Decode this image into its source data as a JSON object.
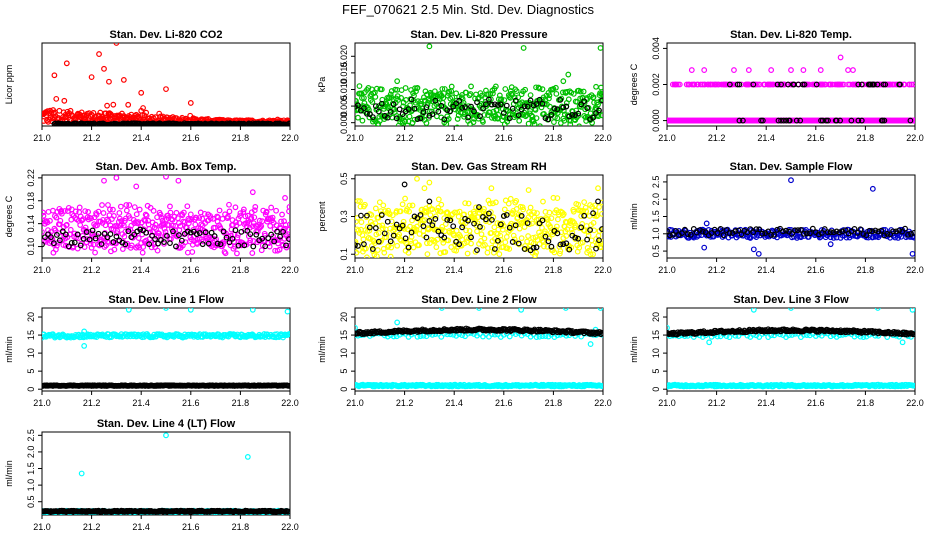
{
  "title": "FEF_070621  2.5 Min. Std. Dev. Diagnostics",
  "x_ticks": [
    "21.0",
    "21.2",
    "21.4",
    "21.6",
    "21.8",
    "22.0"
  ],
  "colors": {
    "overlay": "#000000"
  },
  "chart_data": [
    {
      "type": "scatter",
      "title": "Stan. Dev. Li-820 CO2",
      "ylabel": "Licor ppm",
      "xlim": [
        21.0,
        22.0
      ],
      "ylim": [
        0.0,
        9.0
      ],
      "yticks": [],
      "color": "#ff0000",
      "series": [
        {
          "name": "primary",
          "color": "#ff0000",
          "noise": "heavy-low-spikes",
          "base": 0.8,
          "spread": 1.2,
          "spikes": [
            [
              21.05,
              5.5
            ],
            [
              21.1,
              6.8
            ],
            [
              21.2,
              5.3
            ],
            [
              21.23,
              7.8
            ],
            [
              21.25,
              6.2
            ],
            [
              21.27,
              4.8
            ],
            [
              21.3,
              9.0
            ],
            [
              21.33,
              5.0
            ],
            [
              21.4,
              3.6
            ],
            [
              21.5,
              4.0
            ],
            [
              21.6,
              2.5
            ],
            [
              21.95,
              0.7
            ]
          ]
        },
        {
          "name": "overlay",
          "color": "#000000",
          "noise": "flat",
          "base": 0.2,
          "spread": 0.1,
          "xmin": 21.05
        }
      ]
    },
    {
      "type": "scatter",
      "title": "Stan. Dev. Li-820 Pressure",
      "ylabel": "kPa",
      "xlim": [
        21.0,
        22.0
      ],
      "ylim": [
        -0.001,
        0.024
      ],
      "yticks": [
        "0.000",
        "0.005",
        "0.010",
        "0.015",
        "0.020"
      ],
      "ytick_values": [
        0.0,
        0.005,
        0.01,
        0.015,
        0.02
      ],
      "color": "#00c000",
      "series": [
        {
          "name": "primary",
          "color": "#00c000",
          "noise": "band",
          "base": 0.005,
          "spread": 0.005,
          "spikes": [
            [
              21.17,
              0.0125
            ],
            [
              21.3,
              0.023
            ],
            [
              21.68,
              0.0225
            ],
            [
              21.84,
              0.0125
            ],
            [
              21.86,
              0.0145
            ],
            [
              21.99,
              0.0225
            ]
          ]
        },
        {
          "name": "overlay",
          "color": "#000000",
          "noise": "sparse",
          "base": 0.004,
          "spread": 0.003,
          "xmin": 21.0
        }
      ]
    },
    {
      "type": "scatter",
      "title": "Stan. Dev. Li-820 Temp.",
      "ylabel": "degrees C",
      "xlim": [
        21.0,
        22.0
      ],
      "ylim": [
        -0.0003,
        0.0043
      ],
      "yticks": [
        "0.000",
        "0.002",
        "0.004"
      ],
      "ytick_values": [
        0.0,
        0.002,
        0.004
      ],
      "color": "#ff00ff",
      "series": [
        {
          "name": "primary-low",
          "color": "#ff00ff",
          "noise": "levels",
          "levels": [
            0.0
          ],
          "density": 1.0,
          "xmin": 21.0
        },
        {
          "name": "primary-mid",
          "color": "#ff00ff",
          "noise": "levels",
          "levels": [
            0.002
          ],
          "density": 0.6,
          "xmin": 21.02,
          "spikes": [
            [
              21.1,
              0.0028
            ],
            [
              21.15,
              0.0028
            ],
            [
              21.27,
              0.0028
            ],
            [
              21.33,
              0.0028
            ],
            [
              21.42,
              0.0028
            ],
            [
              21.5,
              0.0028
            ],
            [
              21.55,
              0.0028
            ],
            [
              21.62,
              0.0028
            ],
            [
              21.7,
              0.0035
            ],
            [
              21.73,
              0.0028
            ],
            [
              21.75,
              0.0028
            ]
          ]
        },
        {
          "name": "overlay",
          "color": "#000000",
          "noise": "levels",
          "levels": [
            0.0,
            0.002
          ],
          "density": 0.12,
          "xmin": 21.25
        }
      ]
    },
    {
      "type": "scatter",
      "title": "Stan. Dev. Amb. Box Temp.",
      "ylabel": "degrees C",
      "xlim": [
        21.0,
        22.0
      ],
      "ylim": [
        0.08,
        0.225
      ],
      "yticks": [
        "0.10",
        "0.14",
        "0.18",
        "0.22"
      ],
      "ytick_values": [
        0.1,
        0.14,
        0.18,
        0.22
      ],
      "color": "#ff00ff",
      "series": [
        {
          "name": "primary",
          "color": "#ff00ff",
          "noise": "band",
          "base": 0.13,
          "spread": 0.035,
          "spikes": [
            [
              21.25,
              0.215
            ],
            [
              21.3,
              0.22
            ],
            [
              21.38,
              0.205
            ],
            [
              21.5,
              0.222
            ],
            [
              21.55,
              0.215
            ],
            [
              21.85,
              0.195
            ],
            [
              21.98,
              0.185
            ]
          ]
        },
        {
          "name": "overlay",
          "color": "#000000",
          "noise": "sparse",
          "base": 0.115,
          "spread": 0.015,
          "xmin": 21.0
        }
      ]
    },
    {
      "type": "scatter",
      "title": "Stan. Dev. Gas Stream RH",
      "ylabel": "percent",
      "xlim": [
        21.0,
        22.0
      ],
      "ylim": [
        0.08,
        0.52
      ],
      "yticks": [
        "0.1",
        "0.3",
        "0.5"
      ],
      "ytick_values": [
        0.1,
        0.3,
        0.5
      ],
      "color": "#ffff00",
      "series": [
        {
          "name": "primary",
          "color": "#ffff00",
          "noise": "band",
          "base": 0.24,
          "spread": 0.13,
          "spikes": [
            [
              21.25,
              0.5
            ],
            [
              21.28,
              0.45
            ],
            [
              21.3,
              0.48
            ],
            [
              21.55,
              0.45
            ],
            [
              21.7,
              0.44
            ],
            [
              21.98,
              0.45
            ]
          ]
        },
        {
          "name": "overlay",
          "color": "#000000",
          "noise": "sparse",
          "base": 0.22,
          "spread": 0.1,
          "xmin": 21.0,
          "spikes": [
            [
              21.2,
              0.47
            ],
            [
              21.3,
              0.38
            ],
            [
              21.5,
              0.35
            ],
            [
              21.98,
              0.38
            ]
          ]
        }
      ]
    },
    {
      "type": "scatter",
      "title": "Stan. Dev. Sample Flow",
      "ylabel": "ml/min",
      "xlim": [
        21.0,
        22.0
      ],
      "ylim": [
        0.3,
        2.7
      ],
      "yticks": [
        "0.5",
        "1.0",
        "1.5",
        "2.0",
        "2.5"
      ],
      "ytick_values": [
        0.5,
        1.0,
        1.5,
        2.0,
        2.5
      ],
      "color": "#0000cc",
      "series": [
        {
          "name": "primary",
          "color": "#0000cc",
          "noise": "flat",
          "base": 1.0,
          "spread": 0.12,
          "spikes": [
            [
              21.15,
              0.6
            ],
            [
              21.16,
              1.3
            ],
            [
              21.35,
              0.55
            ],
            [
              21.37,
              0.42
            ],
            [
              21.5,
              2.55
            ],
            [
              21.66,
              0.7
            ],
            [
              21.83,
              2.3
            ],
            [
              21.99,
              0.42
            ]
          ]
        },
        {
          "name": "overlay",
          "color": "#000000",
          "noise": "sparse",
          "base": 1.05,
          "spread": 0.1,
          "xmin": 21.0
        }
      ]
    },
    {
      "type": "scatter",
      "title": "Stan. Dev. Line 1 Flow",
      "ylabel": "ml/min",
      "xlim": [
        21.0,
        22.0
      ],
      "ylim": [
        -0.5,
        22.5
      ],
      "yticks": [
        "0",
        "5",
        "10",
        "15",
        "20"
      ],
      "ytick_values": [
        0,
        5,
        10,
        15,
        20
      ],
      "color": "#00ffff",
      "series": [
        {
          "name": "primary",
          "color": "#00ffff",
          "noise": "flat",
          "base": 14.8,
          "spread": 0.5,
          "spikes": [
            [
              21.17,
              16.0
            ],
            [
              21.17,
              12.0
            ],
            [
              21.35,
              22.0
            ],
            [
              21.5,
              22.5
            ],
            [
              21.6,
              22.0
            ],
            [
              21.85,
              22.0
            ],
            [
              21.99,
              21.5
            ]
          ]
        },
        {
          "name": "overlay",
          "color": "#000000",
          "noise": "flat",
          "base": 1.0,
          "spread": 0.1,
          "xmin": 21.0
        }
      ]
    },
    {
      "type": "scatter",
      "title": "Stan. Dev. Line 2 Flow",
      "ylabel": "ml/min",
      "xlim": [
        21.0,
        22.0
      ],
      "ylim": [
        -0.5,
        22.5
      ],
      "yticks": [
        "0",
        "5",
        "10",
        "15",
        "20"
      ],
      "ytick_values": [
        0,
        5,
        10,
        15,
        20
      ],
      "color": "#00ffff",
      "series": [
        {
          "name": "primary-low",
          "color": "#00ffff",
          "noise": "flat",
          "base": 1.0,
          "spread": 0.25
        },
        {
          "name": "primary-high",
          "color": "#00ffff",
          "noise": "sparse",
          "base": 15.0,
          "spread": 0.6,
          "xmin": 21.0,
          "spikes": [
            [
              21.0,
              17.0
            ],
            [
              21.17,
              18.5
            ],
            [
              21.35,
              22.5
            ],
            [
              21.5,
              22.5
            ],
            [
              21.67,
              22.0
            ],
            [
              21.85,
              22.5
            ],
            [
              21.99,
              22.5
            ],
            [
              21.97,
              16.5
            ],
            [
              21.95,
              12.5
            ]
          ]
        },
        {
          "name": "overlay",
          "color": "#000000",
          "noise": "flat",
          "base": 15.5,
          "spread": 0.35,
          "xmin": 21.0,
          "curve": 1.0
        }
      ]
    },
    {
      "type": "scatter",
      "title": "Stan. Dev. Line 3 Flow",
      "ylabel": "ml/min",
      "xlim": [
        21.0,
        22.0
      ],
      "ylim": [
        -0.5,
        22.5
      ],
      "yticks": [
        "0",
        "5",
        "10",
        "15",
        "20"
      ],
      "ytick_values": [
        0,
        5,
        10,
        15,
        20
      ],
      "color": "#00ffff",
      "series": [
        {
          "name": "primary-low",
          "color": "#00ffff",
          "noise": "flat",
          "base": 1.0,
          "spread": 0.25
        },
        {
          "name": "primary-high",
          "color": "#00ffff",
          "noise": "sparse",
          "base": 15.0,
          "spread": 0.6,
          "xmin": 21.0,
          "spikes": [
            [
              21.0,
              17.0
            ],
            [
              21.17,
              13.0
            ],
            [
              21.35,
              22.0
            ],
            [
              21.5,
              22.5
            ],
            [
              21.85,
              22.5
            ],
            [
              21.99,
              22.0
            ],
            [
              21.95,
              13.0
            ]
          ]
        },
        {
          "name": "overlay",
          "color": "#000000",
          "noise": "flat",
          "base": 15.3,
          "spread": 0.35,
          "xmin": 21.0,
          "curve": 1.0
        }
      ]
    },
    {
      "type": "scatter",
      "title": "Stan. Dev. Line 4 (LT) Flow",
      "ylabel": "ml/min",
      "xlim": [
        21.0,
        22.0
      ],
      "ylim": [
        0.1,
        2.6
      ],
      "yticks": [
        "0.5",
        "1.0",
        "1.5",
        "2.0",
        "2.5"
      ],
      "ytick_values": [
        0.5,
        1.0,
        1.5,
        2.0,
        2.5
      ],
      "color": "#00ffff",
      "series": [
        {
          "name": "primary",
          "color": "#00ffff",
          "noise": "flat",
          "base": 0.2,
          "spread": 0.03,
          "spikes": [
            [
              21.16,
              1.35
            ],
            [
              21.5,
              2.5
            ],
            [
              21.83,
              1.85
            ]
          ]
        },
        {
          "name": "overlay",
          "color": "#000000",
          "noise": "flat",
          "base": 0.21,
          "spread": 0.02,
          "xmin": 21.0
        }
      ]
    }
  ]
}
